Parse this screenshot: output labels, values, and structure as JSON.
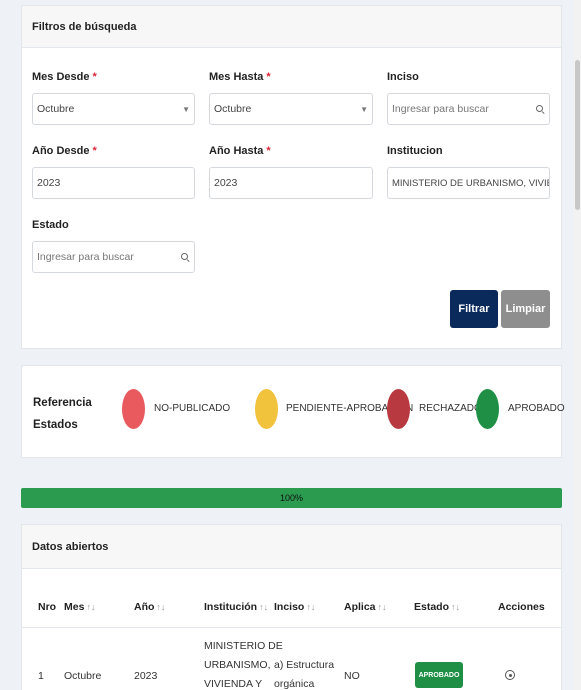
{
  "filters": {
    "title": "Filtros de búsqueda",
    "mes_desde": {
      "label": "Mes Desde",
      "required": "*",
      "value": "Octubre"
    },
    "mes_hasta": {
      "label": "Mes Hasta",
      "required": "*",
      "value": "Octubre"
    },
    "inciso": {
      "label": "Inciso",
      "placeholder": "Ingresar para buscar"
    },
    "anio_desde": {
      "label": "Año Desde",
      "required": "*",
      "value": "2023"
    },
    "anio_hasta": {
      "label": "Año Hasta",
      "required": "*",
      "value": "2023"
    },
    "institucion": {
      "label": "Institucion",
      "value": "MINISTERIO DE URBANISMO, VIVIENDA Y HABITAT"
    },
    "estado": {
      "label": "Estado",
      "placeholder": "Ingresar para buscar"
    },
    "filter_button": "Filtrar",
    "clear_button": "Limpiar"
  },
  "legend": {
    "title_line1": "Referencia",
    "title_line2": "Estados",
    "items": [
      {
        "label": "NO-PUBLICADO",
        "color": "#e85a5e"
      },
      {
        "label": "PENDIENTE-APROBACION",
        "color": "#f1c23c"
      },
      {
        "label": "RECHAZADO",
        "color": "#b83a40"
      },
      {
        "label": "APROBADO",
        "color": "#1e8f45"
      }
    ]
  },
  "progress": {
    "value": 100,
    "label": "100%"
  },
  "table": {
    "title": "Datos abiertos",
    "columns": {
      "nro": "Nro",
      "mes": "Mes",
      "anio": "Año",
      "institucion": "Institución",
      "inciso": "Inciso",
      "aplica": "Aplica",
      "estado": "Estado",
      "acciones": "Acciones"
    },
    "sort_glyph": "↑↓",
    "rows": [
      {
        "nro": "1",
        "mes": "Octubre",
        "anio": "2023",
        "institucion_l1": "MINISTERIO DE",
        "institucion_l2": "URBANISMO,",
        "institucion_l3": "VIVIENDA Y",
        "inciso_l1": "a) Estructura",
        "inciso_l2": "orgánica",
        "aplica": "NO",
        "estado": "APROBADO"
      }
    ]
  }
}
